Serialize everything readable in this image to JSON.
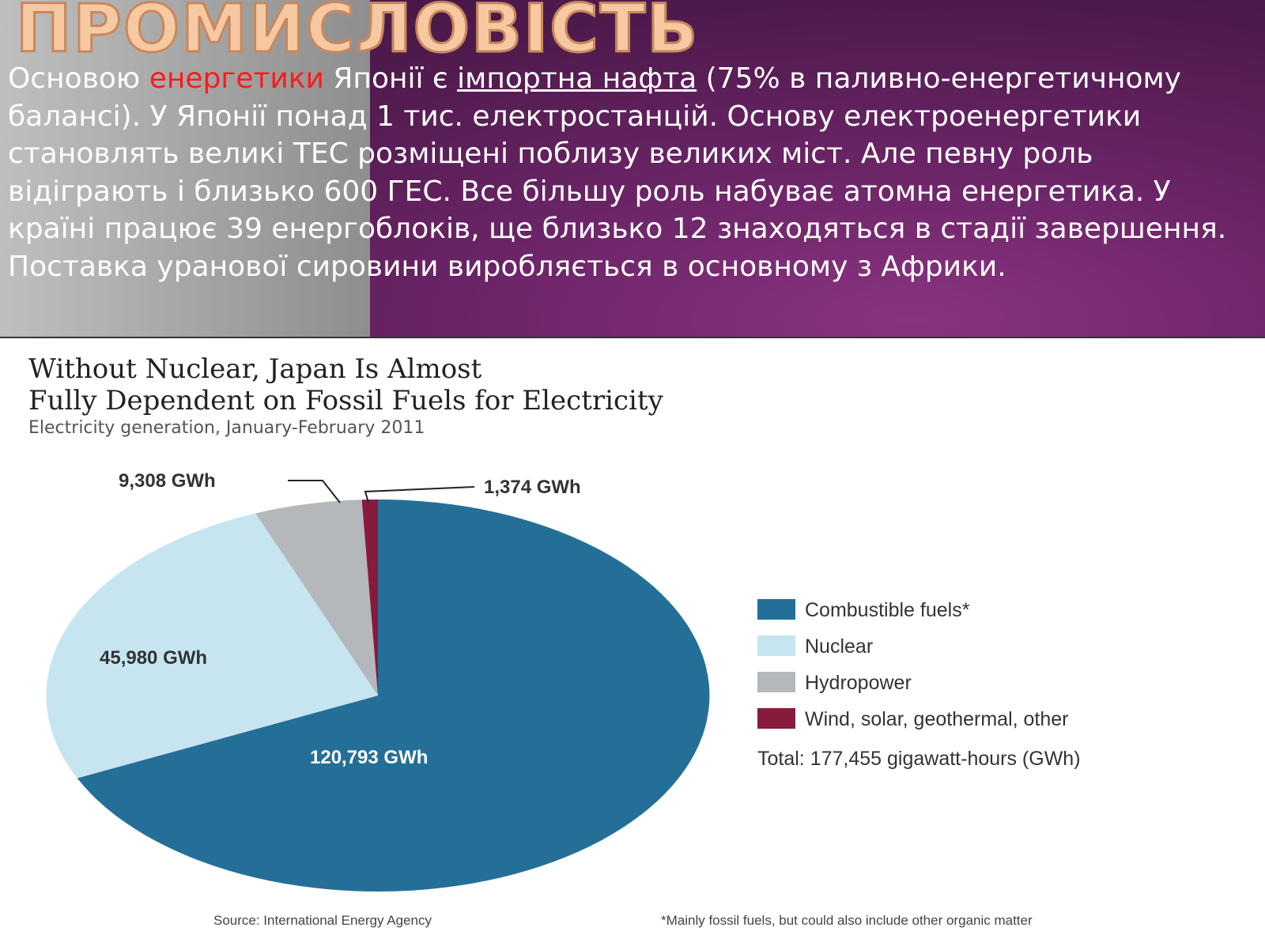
{
  "slide": {
    "title": "ПРОМИСЛОВІСТЬ",
    "paragraph": {
      "part1": "Основою ",
      "highlight": "енергетики",
      "part2": " Японії є ",
      "link": "імпортна нафта",
      "part3": " (75% в паливно-енергетичному балансі). У Японії понад 1 тис. електростанцій. Основу електроенергетики становлять великі ТЕС розміщені поблизу великих міст. Але певну роль відіграють і близько 600 ГЕС. Все більшу роль набуває атомна енергетика. У країні працює 39 енергоблоків, ще близько 12 знаходяться в стадії завершення. Поставка уранової сировини виробляється в основному з Африки."
    },
    "colors": {
      "highlight": "#ff1a1a",
      "header_purple": "#5a1d57",
      "title_orange": "#f6c9a2"
    }
  },
  "chart_data": {
    "type": "pie",
    "title_line1": "Without Nuclear, Japan Is Almost",
    "title_line2": "Fully Dependent on Fossil Fuels for Electricity",
    "subtitle": "Electricity generation, January-February 2011",
    "unit": "GWh",
    "slices": [
      {
        "name": "Combustible fuels*",
        "value": 120793,
        "label": "120,793 GWh",
        "color": "#246f98"
      },
      {
        "name": "Nuclear",
        "value": 45980,
        "label": "45,980 GWh",
        "color": "#c6e5f0"
      },
      {
        "name": "Hydropower",
        "value": 9308,
        "label": "9,308 GWh",
        "color": "#b4b8ba"
      },
      {
        "name": "Wind, solar, geothermal, other",
        "value": 1374,
        "label": "1,374 GWh",
        "color": "#871b3c"
      }
    ],
    "total_text": "Total: 177,455 gigawatt-hours (GWh)",
    "legend_position": "right",
    "source": "Source:  International Energy Agency",
    "footnote": "*Mainly fossil fuels, but could also include other organic matter"
  }
}
